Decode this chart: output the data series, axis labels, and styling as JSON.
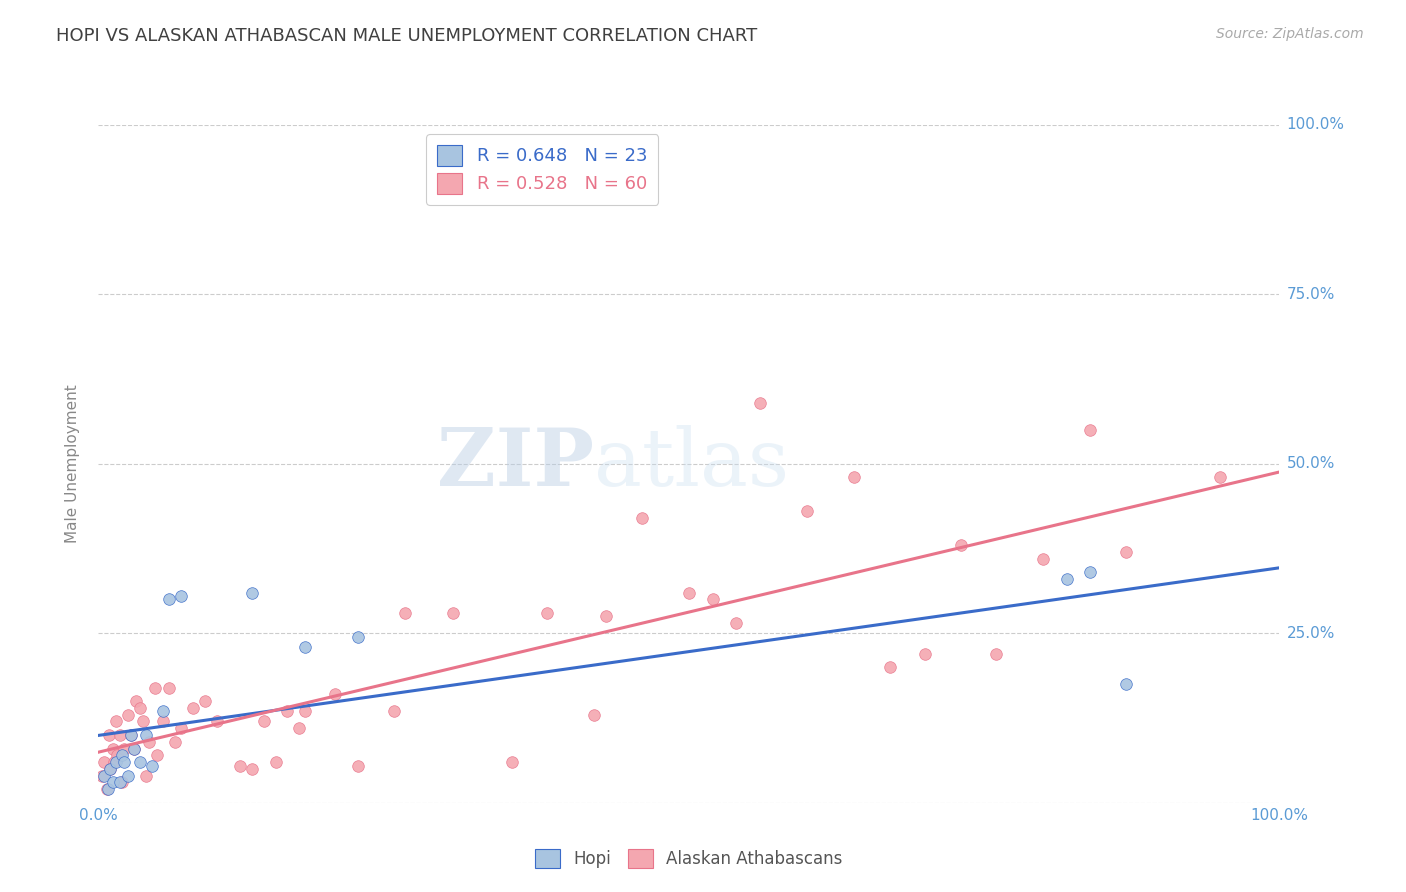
{
  "title": "HOPI VS ALASKAN ATHABASCAN MALE UNEMPLOYMENT CORRELATION CHART",
  "source": "Source: ZipAtlas.com",
  "ylabel": "Male Unemployment",
  "xlim": [
    0,
    1.0
  ],
  "ylim": [
    0,
    1.0
  ],
  "hopi_color": "#a8c4e0",
  "alaska_color": "#f4a7b0",
  "hopi_line_color": "#3a6bc9",
  "alaska_line_color": "#e8748a",
  "hopi_R": 0.648,
  "hopi_N": 23,
  "alaska_R": 0.528,
  "alaska_N": 60,
  "hopi_x": [
    0.005,
    0.008,
    0.01,
    0.012,
    0.015,
    0.018,
    0.02,
    0.022,
    0.025,
    0.028,
    0.03,
    0.035,
    0.04,
    0.045,
    0.055,
    0.06,
    0.07,
    0.13,
    0.175,
    0.22,
    0.82,
    0.84,
    0.87
  ],
  "hopi_y": [
    0.04,
    0.02,
    0.05,
    0.03,
    0.06,
    0.03,
    0.07,
    0.06,
    0.04,
    0.1,
    0.08,
    0.06,
    0.1,
    0.055,
    0.135,
    0.3,
    0.305,
    0.31,
    0.23,
    0.245,
    0.33,
    0.34,
    0.175
  ],
  "alaska_x": [
    0.003,
    0.005,
    0.007,
    0.009,
    0.01,
    0.012,
    0.013,
    0.015,
    0.016,
    0.018,
    0.02,
    0.022,
    0.025,
    0.028,
    0.03,
    0.032,
    0.035,
    0.038,
    0.04,
    0.043,
    0.048,
    0.05,
    0.055,
    0.06,
    0.065,
    0.07,
    0.08,
    0.09,
    0.1,
    0.12,
    0.13,
    0.14,
    0.15,
    0.16,
    0.17,
    0.175,
    0.2,
    0.22,
    0.25,
    0.26,
    0.3,
    0.35,
    0.38,
    0.42,
    0.43,
    0.46,
    0.5,
    0.52,
    0.54,
    0.56,
    0.6,
    0.64,
    0.67,
    0.7,
    0.73,
    0.76,
    0.8,
    0.84,
    0.87,
    0.95
  ],
  "alaska_y": [
    0.04,
    0.06,
    0.02,
    0.1,
    0.05,
    0.08,
    0.06,
    0.12,
    0.07,
    0.1,
    0.03,
    0.08,
    0.13,
    0.1,
    0.08,
    0.15,
    0.14,
    0.12,
    0.04,
    0.09,
    0.17,
    0.07,
    0.12,
    0.17,
    0.09,
    0.11,
    0.14,
    0.15,
    0.12,
    0.055,
    0.05,
    0.12,
    0.06,
    0.135,
    0.11,
    0.135,
    0.16,
    0.055,
    0.135,
    0.28,
    0.28,
    0.06,
    0.28,
    0.13,
    0.275,
    0.42,
    0.31,
    0.3,
    0.265,
    0.59,
    0.43,
    0.48,
    0.2,
    0.22,
    0.38,
    0.22,
    0.36,
    0.55,
    0.37,
    0.48
  ],
  "watermark_zip": "ZIP",
  "watermark_atlas": "atlas",
  "background_color": "#ffffff",
  "grid_color": "#cccccc",
  "title_color": "#404040",
  "axis_label_color": "#5b9bd5",
  "ylabel_color": "#888888",
  "marker_size": 70,
  "legend_fontsize": 13,
  "title_fontsize": 13,
  "source_fontsize": 10,
  "tick_fontsize": 11
}
